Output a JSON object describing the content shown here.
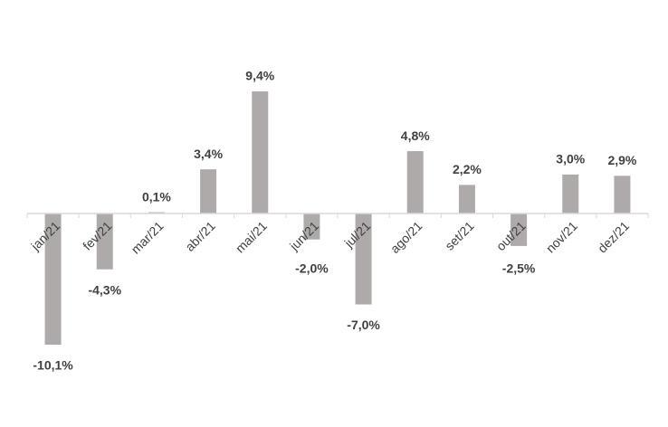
{
  "chart_data": {
    "type": "bar",
    "categories": [
      "jan/21",
      "fev/21",
      "mar/21",
      "abr/21",
      "mai/21",
      "jun/21",
      "jul/21",
      "ago/21",
      "set/21",
      "out/21",
      "nov/21",
      "dez/21"
    ],
    "values": [
      -10.1,
      -4.3,
      0.1,
      3.4,
      9.4,
      -2.0,
      -7.0,
      4.8,
      2.2,
      -2.5,
      3.0,
      2.9
    ],
    "value_labels": [
      "-10,1%",
      "-4,3%",
      "0,1%",
      "3,4%",
      "9,4%",
      "-2,0%",
      "-7,0%",
      "4,8%",
      "2,2%",
      "-2,5%",
      "3,0%",
      "2,9%"
    ],
    "color": "#aeaaaa",
    "ylim": [
      -12,
      12
    ]
  }
}
